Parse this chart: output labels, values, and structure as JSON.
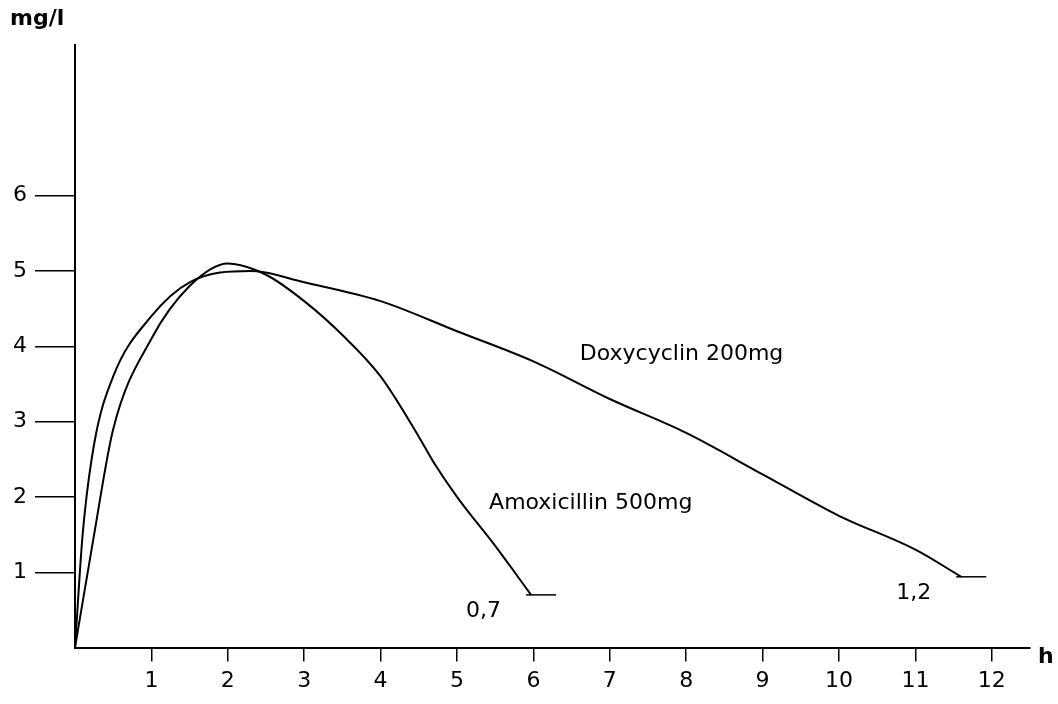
{
  "chart_data": {
    "type": "line",
    "xlabel": "h",
    "ylabel": "mg/l",
    "xlim": [
      0,
      12.5
    ],
    "xticks": [
      1,
      2,
      3,
      4,
      5,
      6,
      7,
      8,
      9,
      10,
      11,
      12
    ],
    "ylim": [
      0,
      8
    ],
    "yticks": [
      1,
      2,
      3,
      4,
      5,
      6
    ],
    "grid": false,
    "legend": false,
    "marker": "none",
    "line_style": "solid",
    "series": [
      {
        "name": "Amoxicillin 500mg",
        "color": "#000000",
        "x": [
          0,
          0.25,
          0.5,
          1,
          1.5,
          2,
          2.5,
          3,
          3.5,
          4,
          4.5,
          4.7,
          5,
          5.5,
          5.97
        ],
        "values": [
          0,
          1.5,
          2.9,
          4.1,
          4.8,
          5.1,
          4.95,
          4.6,
          4.15,
          3.6,
          2.8,
          2.45,
          2.0,
          1.35,
          0.7
        ]
      },
      {
        "name": "Doxycyclin 200mg",
        "color": "#000000",
        "x": [
          0,
          0.1,
          0.25,
          0.5,
          1,
          1.5,
          2.3,
          3,
          4,
          5,
          6,
          7,
          8,
          9,
          10,
          11,
          11.6
        ],
        "values": [
          0,
          1.5,
          2.7,
          3.6,
          4.4,
          4.85,
          5.0,
          4.85,
          4.6,
          4.2,
          3.8,
          3.3,
          2.85,
          2.3,
          1.75,
          1.3,
          0.94
        ]
      }
    ],
    "annotations": [
      {
        "text": "0,7",
        "x": 5.97,
        "y": 0.7
      },
      {
        "text": "1,2",
        "x": 11.6,
        "y": 0.94
      }
    ]
  }
}
